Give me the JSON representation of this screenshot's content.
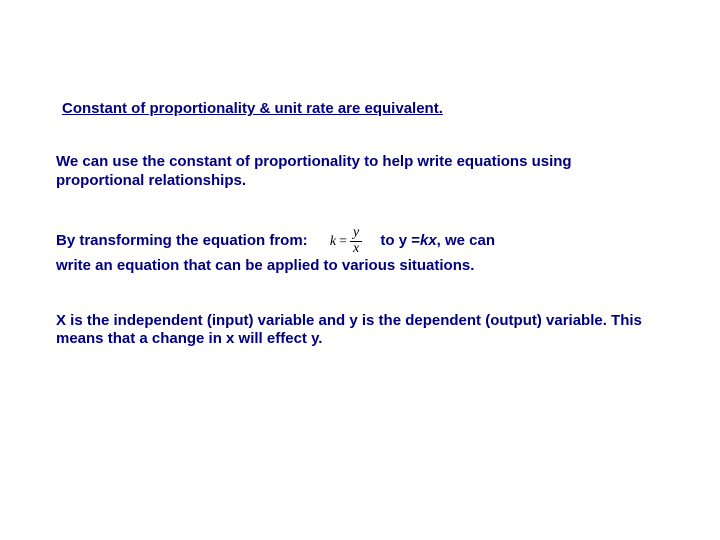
{
  "title": "Constant of proportionality & unit rate are equivalent.",
  "para1": "We can use the constant of proportionality to help write equations using proportional relationships.",
  "para2": {
    "lead": "By transforming the equation from:",
    "formula": {
      "k": "k",
      "eq": "=",
      "num": "y",
      "den": "x"
    },
    "afterFormula_pre": "to y = ",
    "afterFormula_ital": "kx",
    "afterFormula_post": ", we can",
    "line2": "write an equation that can be applied to various situations."
  },
  "para3": "X is the independent (input) variable and y is the dependent (output) variable. This means that a change in x will effect y.",
  "colors": {
    "text": "#000080",
    "formula": "#000000",
    "background": "#ffffff"
  }
}
